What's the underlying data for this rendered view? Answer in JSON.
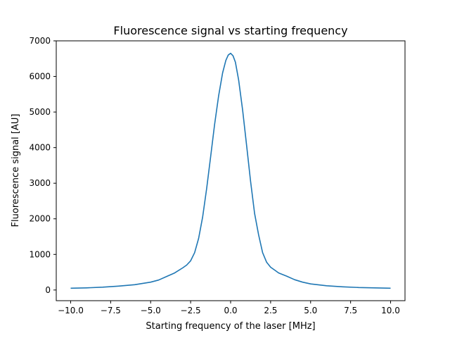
{
  "chart_data": {
    "type": "line",
    "title": "Fluorescence signal vs starting frequency",
    "xlabel": "Starting frequency of the laser [MHz]",
    "ylabel": "Fluorescence signal [AU]",
    "xlim": [
      -10.9,
      10.9
    ],
    "ylim": [
      -300,
      7000
    ],
    "xticks": [
      -10.0,
      -7.5,
      -5.0,
      -2.5,
      0.0,
      2.5,
      5.0,
      7.5,
      10.0
    ],
    "xtick_labels": [
      "−10.0",
      "−7.5",
      "−5.0",
      "−2.5",
      "0.0",
      "2.5",
      "5.0",
      "7.5",
      "10.0"
    ],
    "yticks": [
      0,
      1000,
      2000,
      3000,
      4000,
      5000,
      6000,
      7000
    ],
    "ytick_labels": [
      "0",
      "1000",
      "2000",
      "3000",
      "4000",
      "5000",
      "6000",
      "7000"
    ],
    "grid": false,
    "color": "#1f77b4",
    "series": [
      {
        "x": [
          -10.0,
          -9.0,
          -8.0,
          -7.0,
          -6.0,
          -5.0,
          -4.5,
          -4.0,
          -3.5,
          -3.0,
          -2.75,
          -2.5,
          -2.25,
          -2.0,
          -1.75,
          -1.5,
          -1.25,
          -1.0,
          -0.75,
          -0.5,
          -0.3,
          -0.15,
          0.0,
          0.15,
          0.3,
          0.5,
          0.75,
          1.0,
          1.25,
          1.5,
          1.75,
          2.0,
          2.25,
          2.5,
          2.75,
          3.0,
          3.5,
          4.0,
          4.5,
          5.0,
          6.0,
          7.0,
          8.0,
          9.0,
          10.0
        ],
        "values": [
          50,
          60,
          80,
          110,
          150,
          220,
          280,
          380,
          480,
          620,
          700,
          820,
          1050,
          1450,
          2050,
          2850,
          3750,
          4650,
          5450,
          6100,
          6450,
          6600,
          6650,
          6580,
          6400,
          5900,
          5050,
          4050,
          3050,
          2150,
          1550,
          1050,
          780,
          640,
          560,
          480,
          390,
          290,
          220,
          170,
          120,
          90,
          70,
          60,
          50
        ]
      }
    ]
  }
}
